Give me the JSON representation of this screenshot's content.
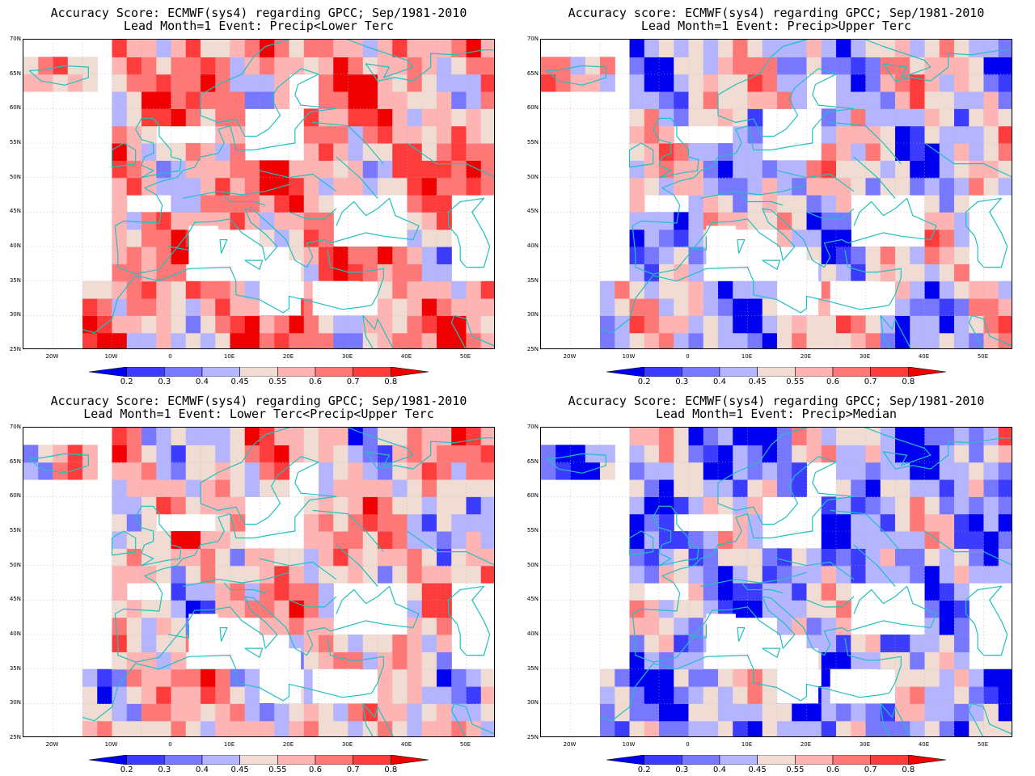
{
  "panels": [
    {
      "title1": "Accuracy Score: ECMWF(sys4) regarding GPCC; Sep/1981-2010",
      "title2": "Lead Month=1 Event: Precip<Lower Terc"
    },
    {
      "title1": "Accuracy score: ECMWF(sys4) regarding GPCC; Sep/1981-2010",
      "title2": "Lead Month=1 Event: Precip>Upper Terc"
    },
    {
      "title1": "Accuracy Score: ECMWF(sys4) regarding GPCC; Sep/1981-2010",
      "title2": "Lead Month=1 Event: Lower Terc<Precip<Upper Terc"
    },
    {
      "title1": "Accuracy Score: ECMWF(sys4) regarding GPCC; Sep/1981-2010",
      "title2": "Lead Month=1 Event: Precip>Median"
    }
  ],
  "lat_labels": [
    "70N",
    "65N",
    "60N",
    "55N",
    "50N",
    "45N",
    "40N",
    "35N",
    "30N",
    "25N"
  ],
  "lon_labels": [
    "20W",
    "10W",
    "0",
    "10E",
    "20E",
    "30E",
    "40E",
    "50E"
  ],
  "colorbar": {
    "labels": [
      "0.2",
      "0.3",
      "0.4",
      "0.45",
      "0.55",
      "0.6",
      "0.7",
      "0.8"
    ],
    "colors": [
      "#0000f0",
      "#3c3cff",
      "#7878ff",
      "#b4b4ff",
      "#f0dcd2",
      "#ffb4b4",
      "#ff7878",
      "#ff3c3c",
      "#f00000"
    ]
  },
  "colors": {
    "coast": "#20c0c0",
    "grid": "#b0b0b0"
  }
}
